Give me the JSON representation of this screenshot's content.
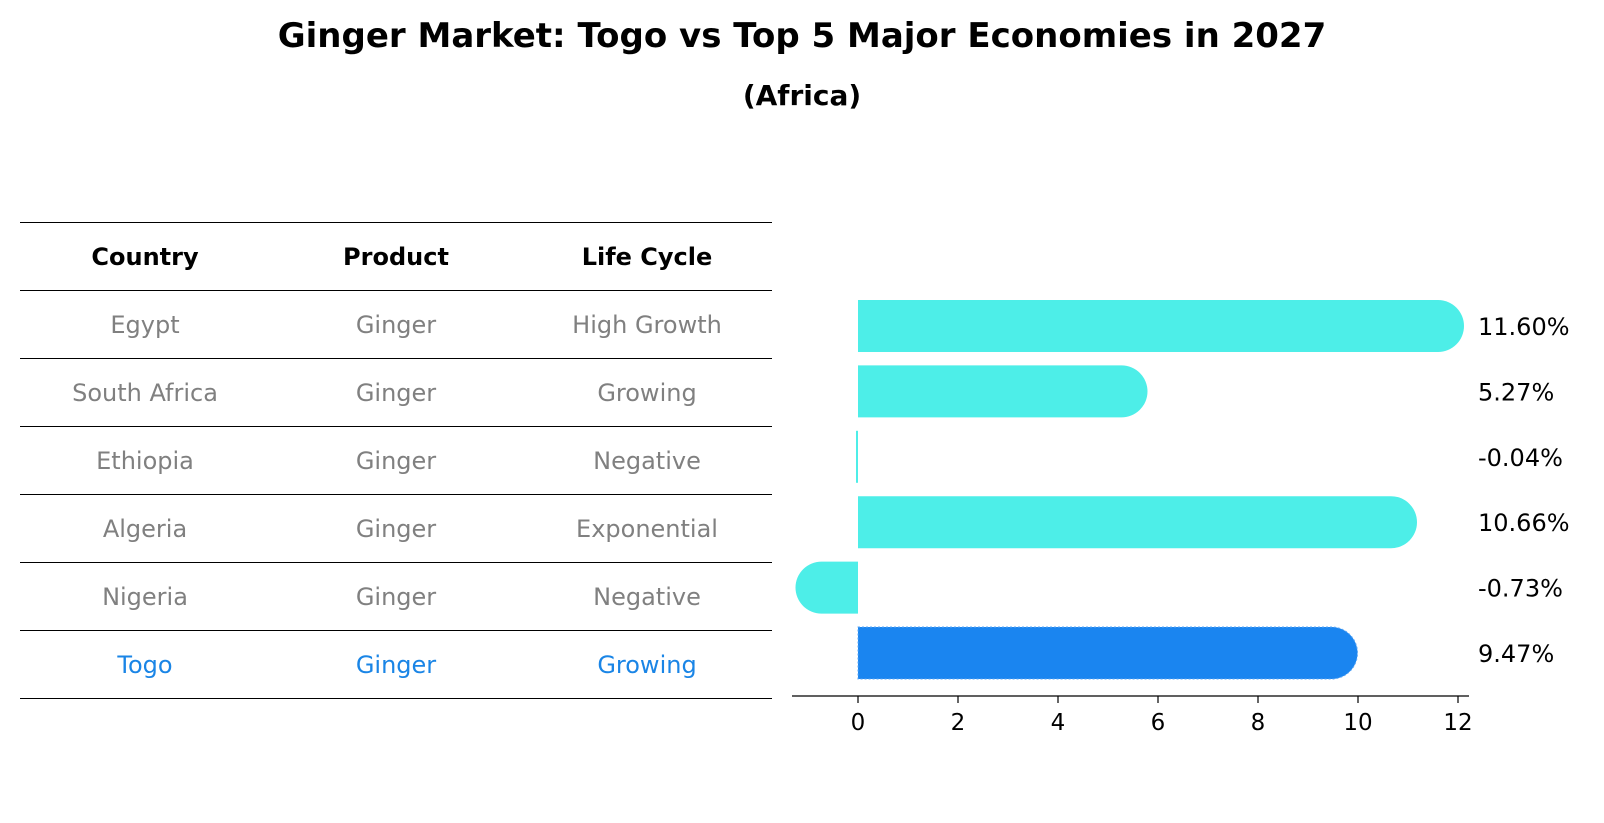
{
  "title": "Ginger Market: Togo vs Top 5 Major Economies in 2027",
  "subtitle": "(Africa)",
  "table": {
    "headers": [
      "Country",
      "Product",
      "Life Cycle"
    ],
    "rows": [
      {
        "country": "Egypt",
        "product": "Ginger",
        "life_cycle": "High Growth"
      },
      {
        "country": "South Africa",
        "product": "Ginger",
        "life_cycle": "Growing"
      },
      {
        "country": "Ethiopia",
        "product": "Ginger",
        "life_cycle": "Negative"
      },
      {
        "country": "Algeria",
        "product": "Ginger",
        "life_cycle": "Exponential"
      },
      {
        "country": "Nigeria",
        "product": "Ginger",
        "life_cycle": "Negative"
      },
      {
        "country": "Togo",
        "product": "Ginger",
        "life_cycle": "Growing"
      }
    ],
    "highlight_row": 5
  },
  "colors": {
    "bar": "#4deee8",
    "highlight_bar": "#1a85f0",
    "row_text": "#808080",
    "highlight_text": "#1a85e6"
  },
  "chart_data": {
    "type": "bar",
    "orientation": "horizontal",
    "categories": [
      "Egypt",
      "South Africa",
      "Ethiopia",
      "Algeria",
      "Nigeria",
      "Togo"
    ],
    "values": [
      11.6,
      5.27,
      -0.04,
      10.66,
      -0.73,
      9.47
    ],
    "value_labels": [
      "11.60%",
      "5.27%",
      "-0.04%",
      "10.66%",
      "-0.73%",
      "9.47%"
    ],
    "highlight_index": 5,
    "xlim": [
      -1.35,
      12.2
    ],
    "xticks": [
      0,
      2,
      4,
      6,
      8,
      10,
      12
    ],
    "grid": false,
    "title": "",
    "xlabel": "",
    "ylabel": ""
  }
}
